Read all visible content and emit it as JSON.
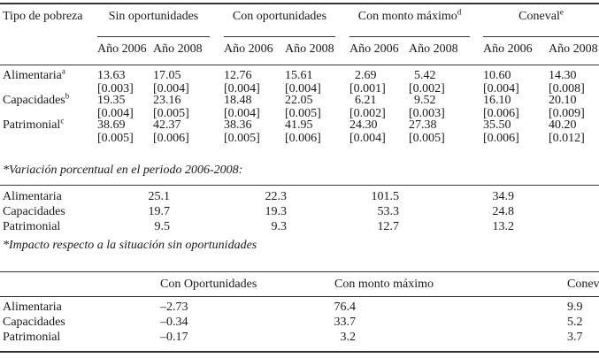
{
  "top_table": {
    "row_header": "Tipo de pobreza",
    "groups": [
      {
        "label": "Sin oportunidades",
        "note": ""
      },
      {
        "label": "Con oportunidades",
        "note": ""
      },
      {
        "label": "Con monto máximo",
        "note": "d"
      },
      {
        "label": "Coneval",
        "note": "e"
      }
    ],
    "years": [
      "Año 2006",
      "Año 2008"
    ],
    "rows": [
      {
        "label": "Alimentaria",
        "note": "a",
        "values": [
          "13.63",
          "17.05",
          "12.76",
          "15.61",
          "2.69",
          "5.42",
          "10.60",
          "14.30"
        ],
        "errors": [
          "[0.003]",
          "[0.004]",
          "[0.004]",
          "[0.004]",
          "[0.001]",
          "[0.002]",
          "[0.004]",
          "[0.008]"
        ]
      },
      {
        "label": "Capacidades",
        "note": "b",
        "values": [
          "19.35",
          "23.16",
          "18.48",
          "22.05",
          "6.21",
          "9.52",
          "16.10",
          "20.10"
        ],
        "errors": [
          "[0.004]",
          "[0.005]",
          "[0.004]",
          "[0.005]",
          "[0.002]",
          "[0.003]",
          "[0.006]",
          "[0.009]"
        ]
      },
      {
        "label": "Patrimonial",
        "note": "c",
        "values": [
          "38.69",
          "42.37",
          "38.36",
          "41.95",
          "24.30",
          "27.38",
          "35.50",
          "40.20"
        ],
        "errors": [
          "[0.005]",
          "[0.006]",
          "[0.005]",
          "[0.006]",
          "[0.004]",
          "[0.005]",
          "[0.006]",
          "[0.012]"
        ]
      }
    ]
  },
  "variation": {
    "title": "*Variación porcentual en el periodo 2006-2008:",
    "rows": [
      {
        "label": "Alimentaria",
        "values": [
          "25.1",
          "22.3",
          "101.5",
          "34.9"
        ]
      },
      {
        "label": "Capacidades",
        "values": [
          "19.7",
          "19.3",
          "53.3",
          "24.8"
        ]
      },
      {
        "label": "Patrimonial",
        "values": [
          "9.5",
          "9.3",
          "12.7",
          "13.2"
        ]
      }
    ]
  },
  "impact": {
    "title": "*Impacto respecto a la situación sin oportunidades",
    "headers": [
      "Con Oportunidades",
      "Con monto máximo",
      "Coneval"
    ],
    "rows": [
      {
        "label": "Alimentaria",
        "values": [
          "–2.73",
          "76.4",
          "9.9"
        ]
      },
      {
        "label": "Capacidades",
        "values": [
          "–0.34",
          "33.7",
          "5.2"
        ]
      },
      {
        "label": "Patrimonial",
        "values": [
          "–0.17",
          "3.2",
          "3.7"
        ]
      }
    ]
  }
}
